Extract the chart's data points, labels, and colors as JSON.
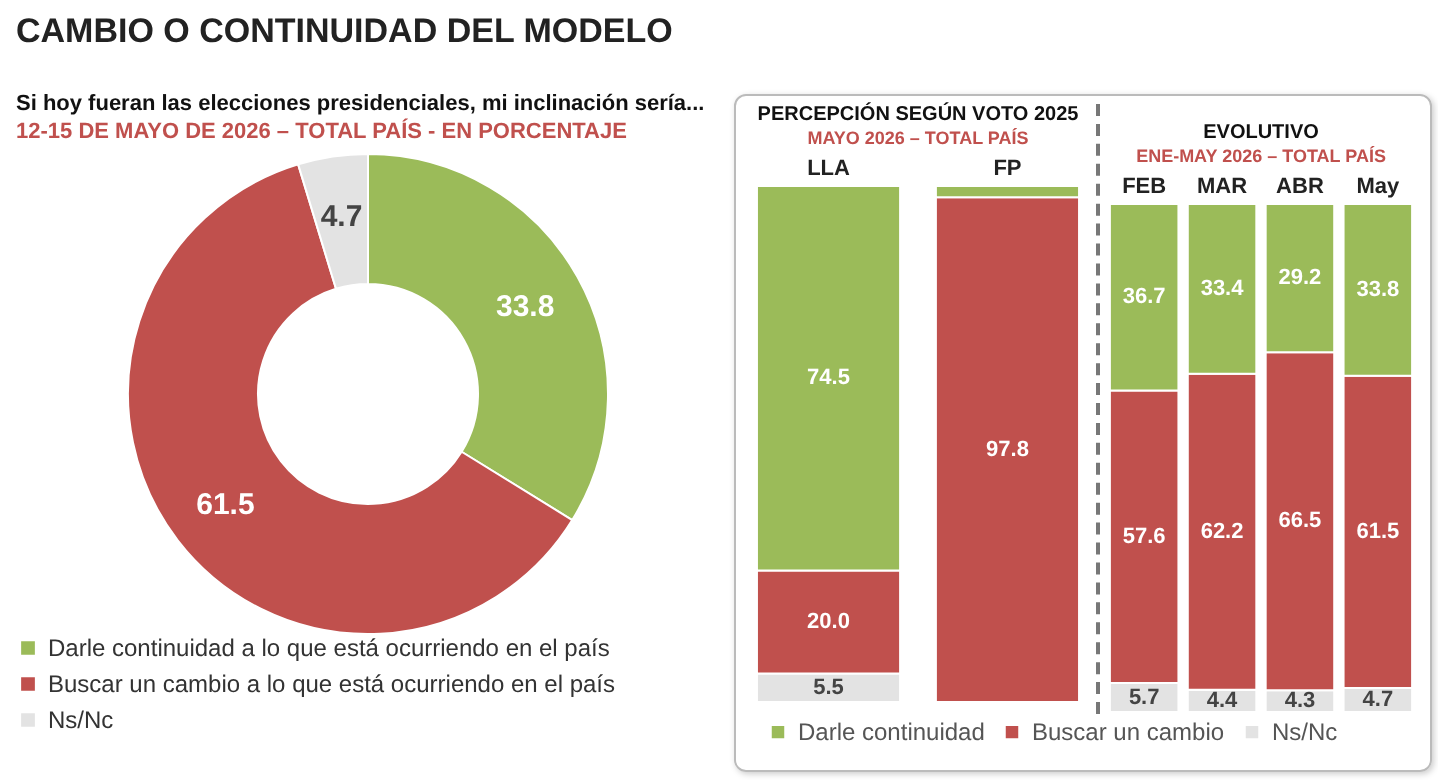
{
  "chart_data": [
    {
      "type": "donut",
      "title": "Si hoy fueran las elecciones presidenciales, mi inclinación sería...",
      "subtitle": "12-15 DE MAYO DE 2026 – TOTAL PAÍS - EN PORCENTAJE",
      "annotations": [
        "CAMBIO O CONTINUIDAD DEL MODELO"
      ],
      "categories": [
        "Darle continuidad a lo que está ocurriendo en el país",
        "Buscar un cambio a lo que está ocurriendo en el país",
        "Ns/Nc"
      ],
      "values": [
        33.8,
        61.5,
        4.7
      ],
      "colors": [
        "#9bbb59",
        "#c0504d",
        "#e3e3e3"
      ],
      "data_labels": true,
      "legend": "bottom"
    },
    {
      "type": "bar",
      "stacked": true,
      "title": "PERCEPCIÓN SEGÚN VOTO 2025",
      "subtitle": "MAYO 2026 – TOTAL PAÍS",
      "categories": [
        "LLA",
        "FP"
      ],
      "series": [
        {
          "color": "#e3e3e3",
          "values": [
            5.5,
            null
          ],
          "value_labels": [
            "5.5",
            null
          ]
        },
        {
          "color": "#c0504d",
          "values": [
            20.0,
            97.8
          ],
          "value_labels": [
            "20.0",
            "97.8"
          ]
        },
        {
          "color": "#9bbb59",
          "values": [
            74.5,
            2.2
          ],
          "value_labels": [
            "74.5",
            null
          ]
        }
      ]
    },
    {
      "type": "bar",
      "stacked": true,
      "title": "EVOLUTIVO",
      "subtitle": "ENE-MAY 2026 – TOTAL PAÍS",
      "categories": [
        "FEB",
        "MAR",
        "ABR",
        "May"
      ],
      "legend": "bottom",
      "series": [
        {
          "name": "Ns/Nc",
          "color": "#e3e3e3",
          "values": [
            5.7,
            4.4,
            4.3,
            4.7
          ],
          "value_labels": [
            "5.7",
            "4.4",
            "4.3",
            "4.7"
          ]
        },
        {
          "name": "Buscar un cambio",
          "color": "#c0504d",
          "values": [
            57.6,
            62.2,
            66.5,
            61.5
          ],
          "value_labels": [
            "57.6",
            "62.2",
            "66.5",
            "61.5"
          ]
        },
        {
          "name": "Darle continuidad",
          "color": "#9bbb59",
          "values": [
            36.7,
            33.4,
            29.2,
            33.8
          ],
          "value_labels": [
            "36.7",
            "33.4",
            "29.2",
            "33.8"
          ]
        }
      ]
    }
  ]
}
